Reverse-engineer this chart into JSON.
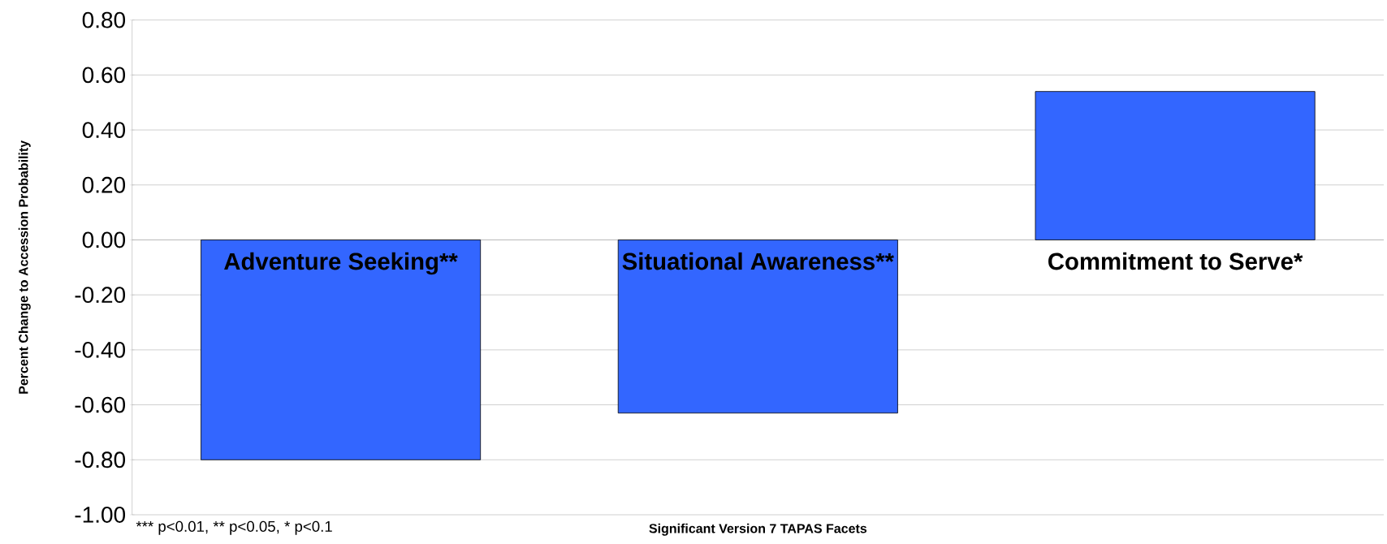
{
  "chart_data": {
    "type": "bar",
    "xlabel": "Significant Version 7 TAPAS Facets",
    "ylabel": "Percent Change to Accession Probability",
    "categories": [
      "Adventure Seeking**",
      "Situational Awareness**",
      "Commitment to Serve*"
    ],
    "values": [
      -0.8,
      -0.63,
      0.54
    ],
    "color": "#3366ff",
    "ylim": [
      -1.0,
      0.8
    ],
    "yticks": [
      {
        "value": -1.0,
        "label": "-1.00"
      },
      {
        "value": -0.8,
        "label": "-0.80"
      },
      {
        "value": -0.6,
        "label": "-0.60"
      },
      {
        "value": -0.4,
        "label": "-0.40"
      },
      {
        "value": -0.2,
        "label": "-0.20"
      },
      {
        "value": 0,
        "label": "0.00"
      },
      {
        "value": 0.2,
        "label": "0.20"
      },
      {
        "value": 0.4,
        "label": "0.40"
      },
      {
        "value": 0.6,
        "label": "0.60"
      },
      {
        "value": 0.8,
        "label": "0.80"
      }
    ],
    "grid": "y",
    "annotations": [
      "*** p<0.01, ** p<0.05, * p<0.1"
    ]
  }
}
